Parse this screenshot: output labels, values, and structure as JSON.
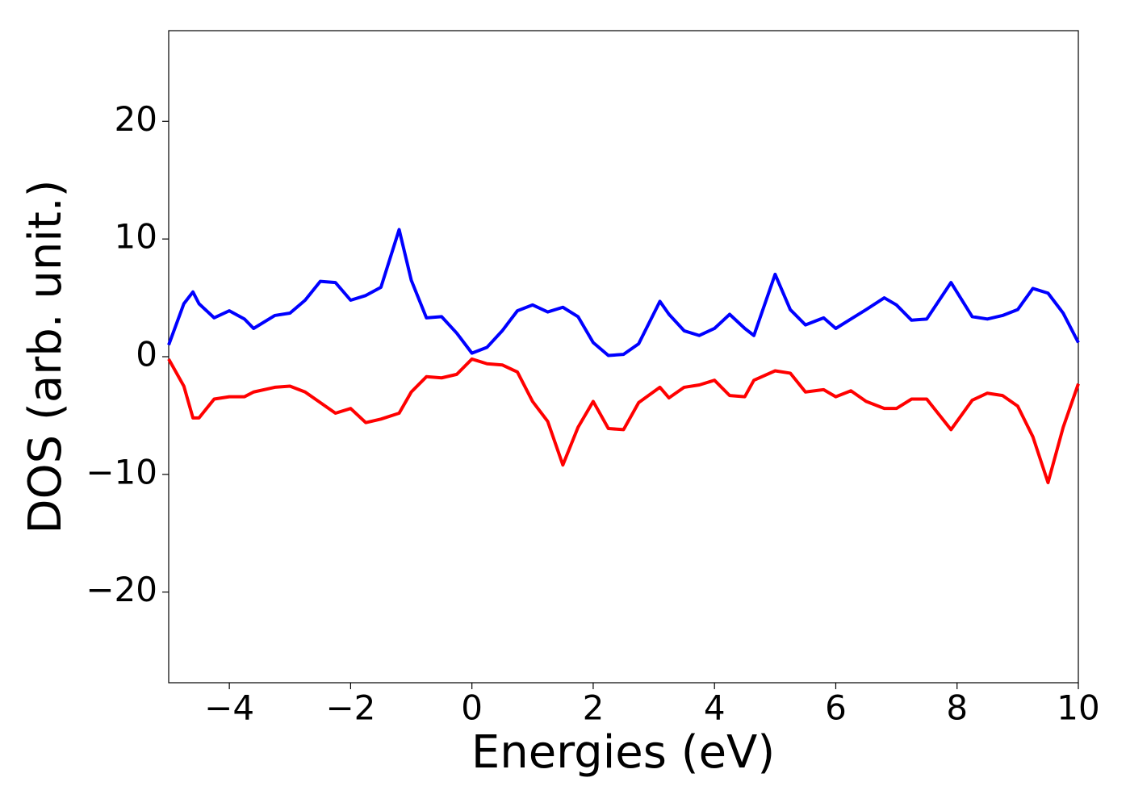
{
  "chart_data": {
    "type": "line",
    "x_label": "Energies (eV)",
    "y_label": "DOS (arb. unit.)",
    "x": [
      -5,
      -4.75,
      -4.6,
      -4.5,
      -4.25,
      -4,
      -3.75,
      -3.6,
      -3.25,
      -3,
      -2.75,
      -2.5,
      -2.25,
      -2,
      -1.75,
      -1.5,
      -1.2,
      -1,
      -0.75,
      -0.5,
      -0.25,
      0,
      0.25,
      0.5,
      0.75,
      1,
      1.25,
      1.5,
      1.75,
      2,
      2.25,
      2.5,
      2.75,
      3.1,
      3.25,
      3.5,
      3.75,
      4,
      4.25,
      4.5,
      4.65,
      5,
      5.25,
      5.5,
      5.8,
      6,
      6.25,
      6.5,
      6.8,
      7,
      7.25,
      7.5,
      7.9,
      8.25,
      8.5,
      8.75,
      9,
      9.25,
      9.5,
      9.75,
      10
    ],
    "series": [
      {
        "color": "#0000ff",
        "values": [
          1,
          4.5,
          5.5,
          4.5,
          3.3,
          3.9,
          3.2,
          2.4,
          3.5,
          3.7,
          4.8,
          6.4,
          6.3,
          4.8,
          5.2,
          5.9,
          10.8,
          6.5,
          3.3,
          3.4,
          2,
          0.3,
          0.8,
          2.2,
          3.9,
          4.4,
          3.8,
          4.2,
          3.4,
          1.2,
          0.1,
          0.2,
          1.1,
          4.7,
          3.6,
          2.2,
          1.8,
          2.4,
          3.6,
          2.4,
          1.8,
          7,
          4,
          2.7,
          3.3,
          2.4,
          3.2,
          4,
          5,
          4.4,
          3.1,
          3.2,
          6.3,
          3.4,
          3.2,
          3.5,
          4,
          5.8,
          5.4,
          3.7,
          1.2
        ]
      },
      {
        "color": "#ff0000",
        "values": [
          -0.2,
          -2.5,
          -5.2,
          -5.2,
          -3.6,
          -3.4,
          -3.4,
          -3,
          -2.6,
          -2.5,
          -3,
          -3.9,
          -4.8,
          -4.4,
          -5.6,
          -5.3,
          -4.8,
          -3,
          -1.7,
          -1.8,
          -1.5,
          -0.2,
          -0.6,
          -0.7,
          -1.3,
          -3.8,
          -5.5,
          -9.2,
          -6,
          -3.8,
          -6.1,
          -6.2,
          -3.9,
          -2.6,
          -3.5,
          -2.6,
          -2.4,
          -2,
          -3.3,
          -3.4,
          -2,
          -1.2,
          -1.4,
          -3,
          -2.8,
          -3.4,
          -2.9,
          -3.8,
          -4.4,
          -4.4,
          -3.6,
          -3.6,
          -6.2,
          -3.7,
          -3.1,
          -3.3,
          -4.2,
          -6.8,
          -10.7,
          -6,
          -2.3
        ]
      }
    ],
    "xlim": [
      -5,
      10
    ],
    "xticks": [
      {
        "value": -4,
        "label": "−4"
      },
      {
        "value": -2,
        "label": "−2"
      },
      0,
      2,
      4,
      6,
      8,
      10
    ],
    "ylim": [
      -27.7,
      27.7
    ],
    "yticks": [
      {
        "value": -20,
        "label": "−20"
      },
      {
        "value": -10,
        "label": "−10"
      },
      0,
      10,
      20
    ],
    "grid": false
  }
}
